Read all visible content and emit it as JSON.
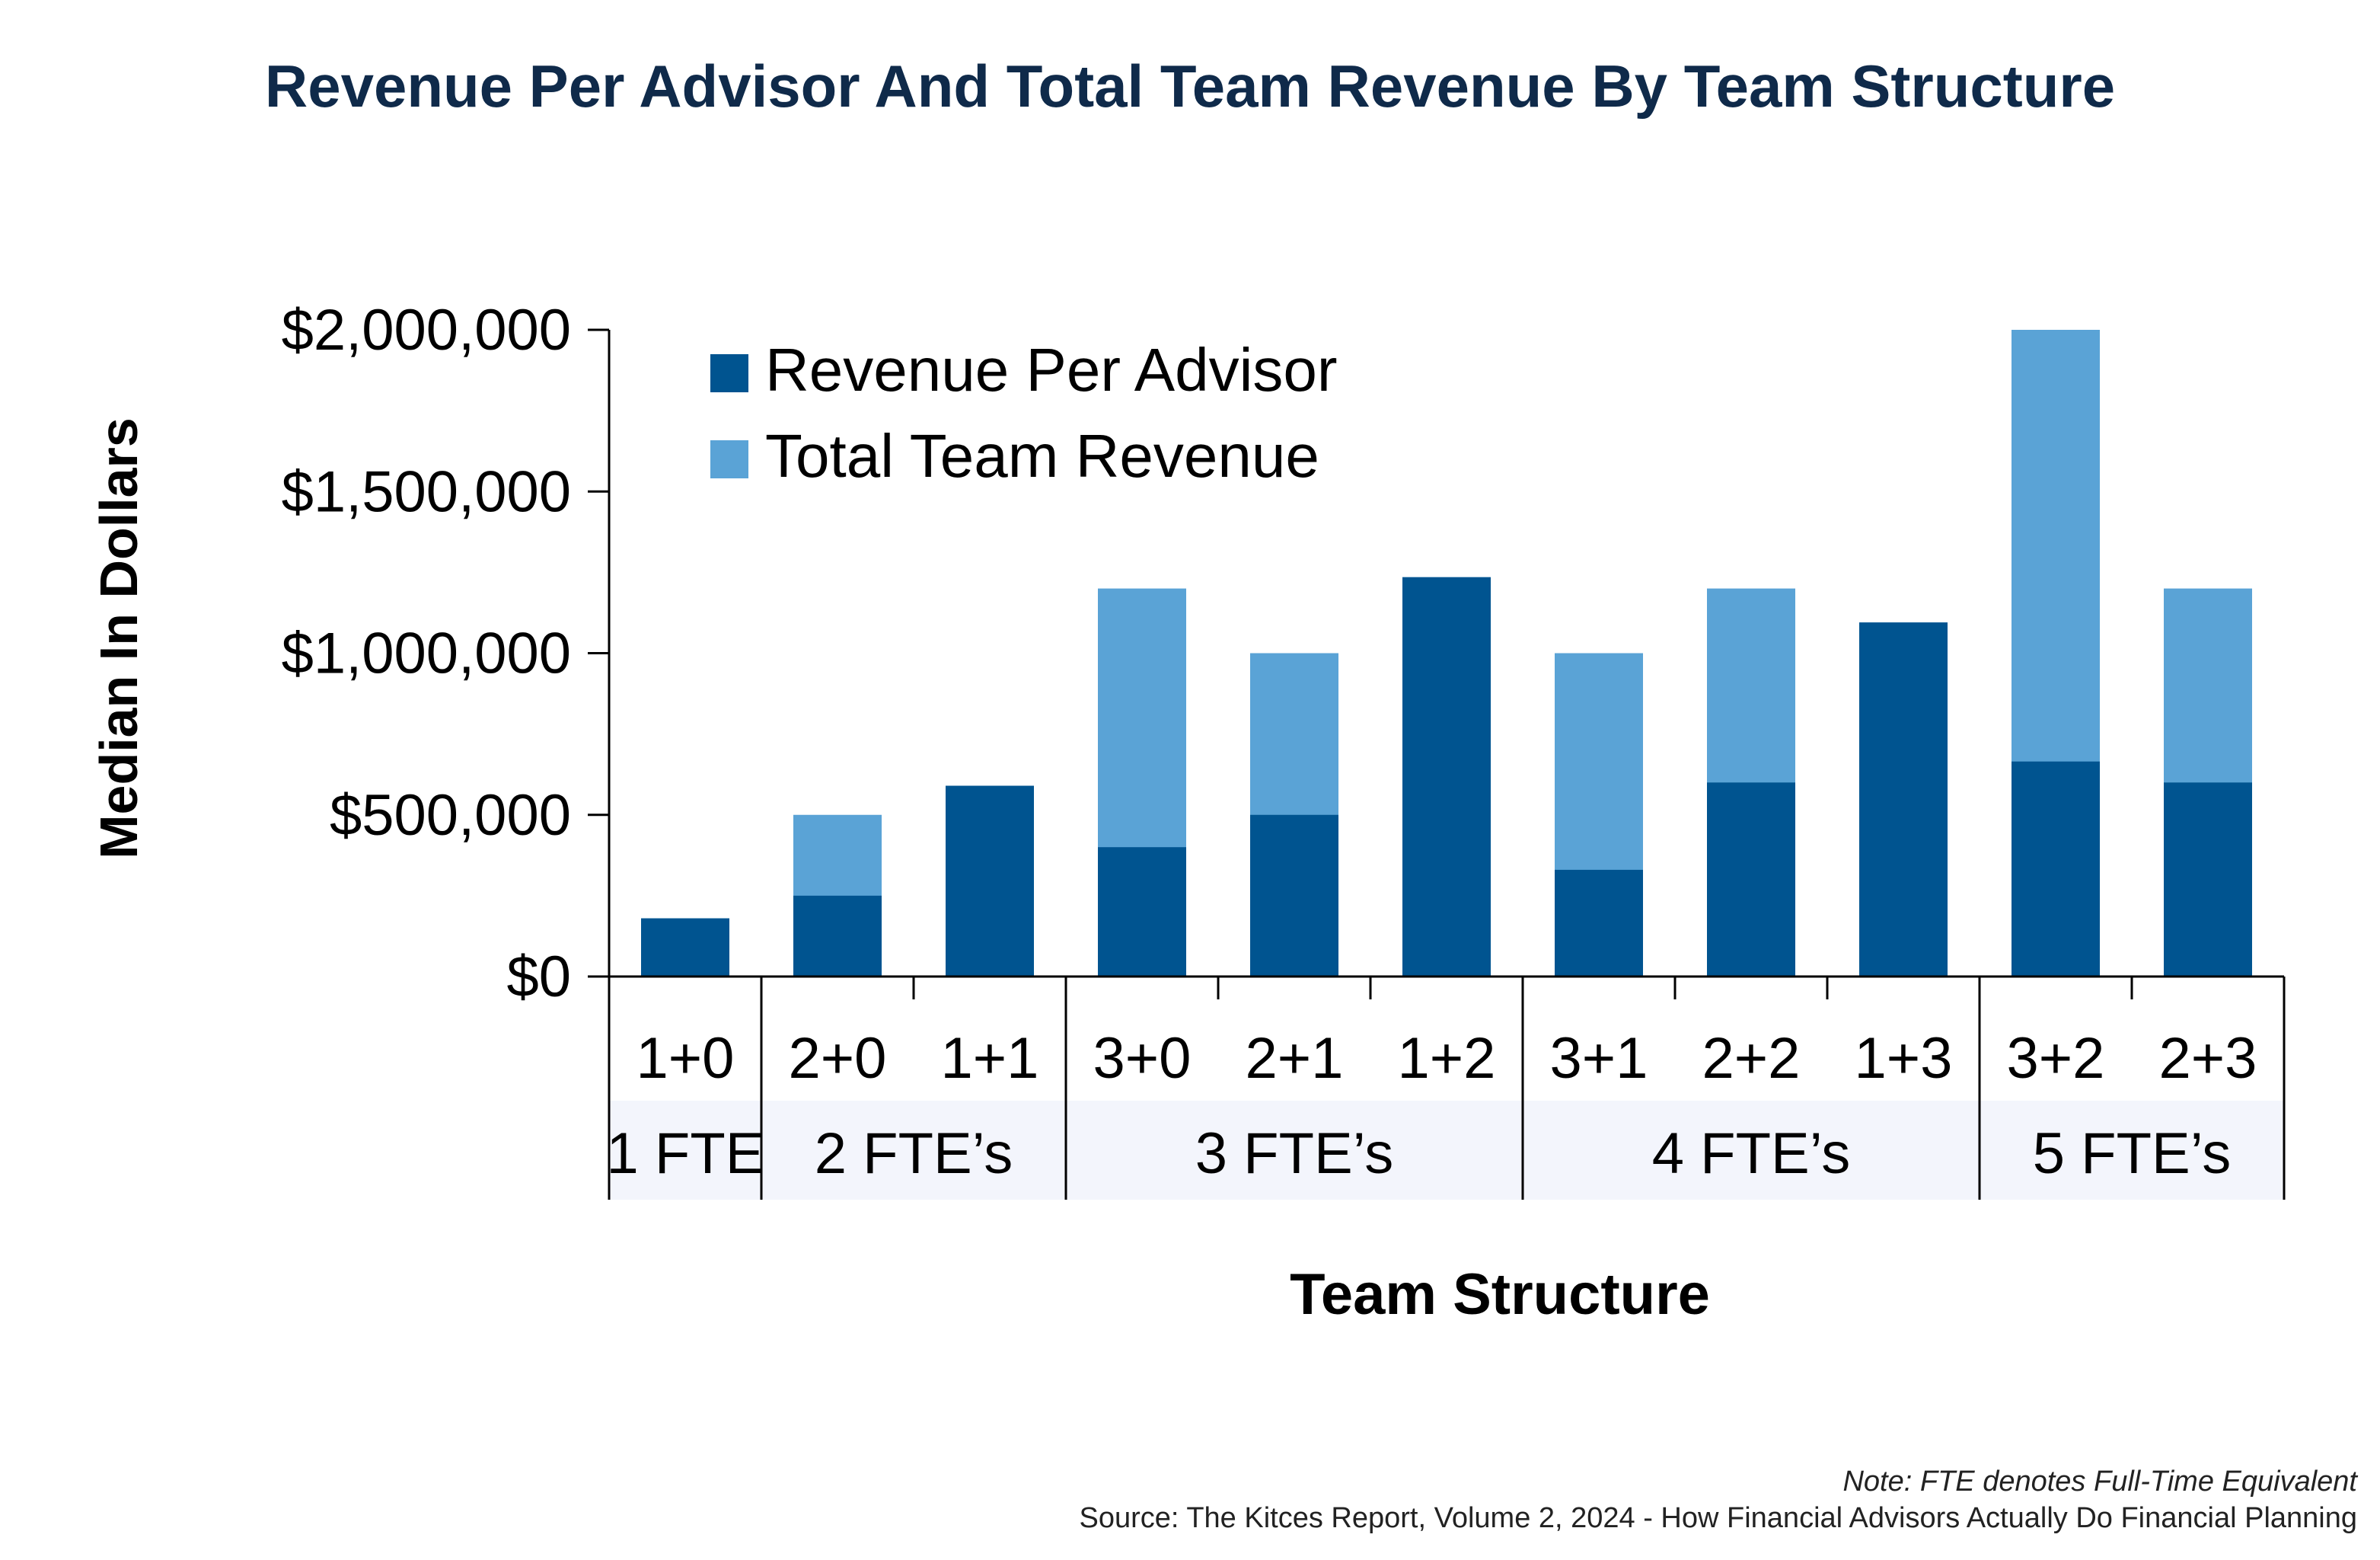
{
  "chart_data": {
    "type": "bar",
    "title": "Revenue Per Advisor And Total Team Revenue By Team Structure",
    "xlabel": "Team Structure",
    "ylabel": "Median In Dollars",
    "ylim": [
      0,
      2000000
    ],
    "yticks": [
      0,
      500000,
      1000000,
      1500000,
      2000000
    ],
    "ytick_labels": [
      "$0",
      "$500,000",
      "$1,000,000",
      "$1,500,000",
      "$2,000,000"
    ],
    "categories": [
      "1+0",
      "2+0",
      "1+1",
      "3+0",
      "2+1",
      "1+2",
      "3+1",
      "2+2",
      "1+3",
      "3+2",
      "2+3"
    ],
    "groups": [
      {
        "label": "1 FTE",
        "members": [
          "1+0"
        ]
      },
      {
        "label": "2 FTE’s",
        "members": [
          "2+0",
          "1+1"
        ]
      },
      {
        "label": "3 FTE’s",
        "members": [
          "3+0",
          "2+1",
          "1+2"
        ]
      },
      {
        "label": "4 FTE’s",
        "members": [
          "3+1",
          "2+2",
          "1+3"
        ]
      },
      {
        "label": "5 FTE’s",
        "members": [
          "3+2",
          "2+3"
        ]
      }
    ],
    "series": [
      {
        "name": "Revenue Per Advisor",
        "color": "#005490",
        "values": [
          180000,
          250000,
          590000,
          400000,
          500000,
          1235000,
          330000,
          600000,
          1095000,
          665000,
          600000
        ]
      },
      {
        "name": "Total Team Revenue",
        "color": "#5aa3d6",
        "values": [
          180000,
          500000,
          590000,
          1200000,
          1000000,
          1235000,
          1000000,
          1200000,
          1095000,
          2000000,
          1200000
        ]
      }
    ],
    "legend": "top-left",
    "grid": false
  },
  "note": "Note: FTE denotes Full-Time Equivalent",
  "source": "Source: The Kitces Report, Volume 2, 2024 - How Financial Advisors Actually Do Financial Planning"
}
